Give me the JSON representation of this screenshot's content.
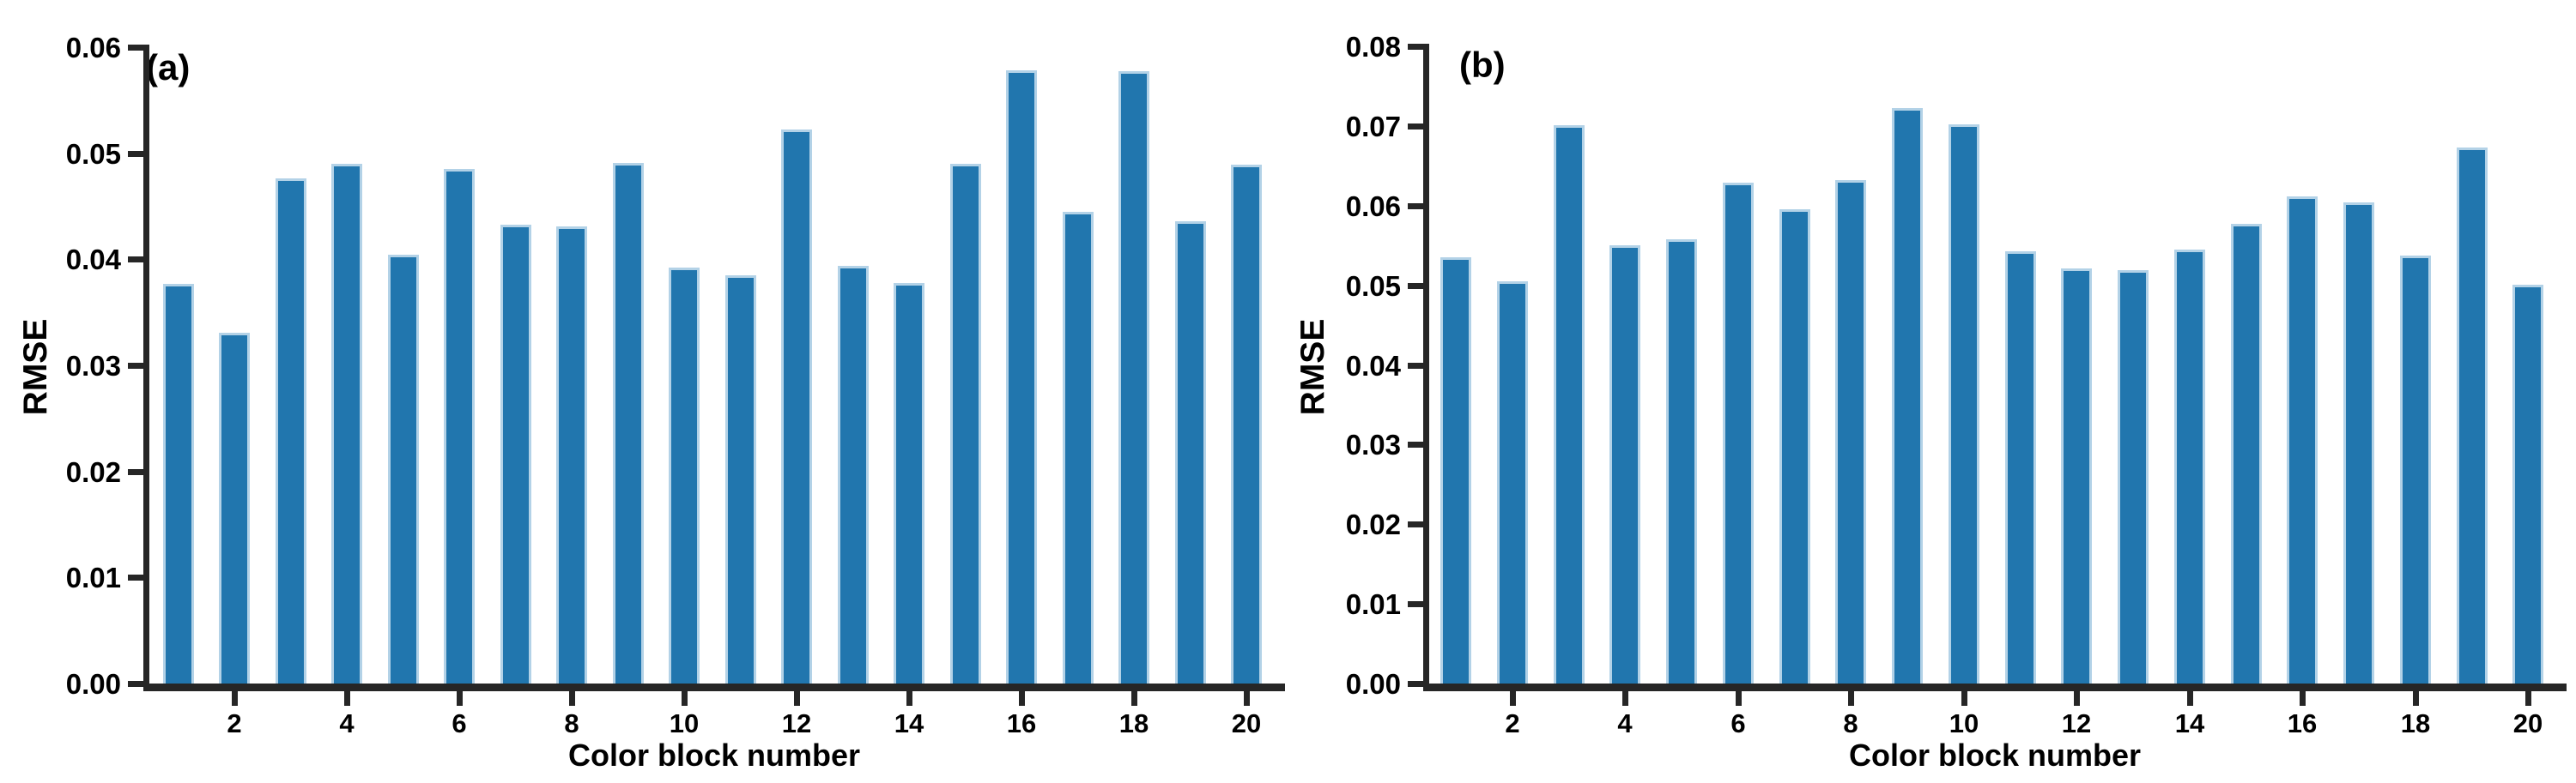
{
  "figure": {
    "background": "#ffffff",
    "bar_fill": "#2176ae",
    "bar_edge": "#b3d2e7",
    "axis_color": "#262626",
    "text_color": "#000000"
  },
  "chart_data": [
    {
      "type": "bar",
      "panel_label": "(a)",
      "xlabel": "Color block number",
      "ylabel": "RMSE",
      "ylim": [
        0,
        0.06
      ],
      "ytick_values": [
        0,
        0.01,
        0.02,
        0.03,
        0.04,
        0.05,
        0.06
      ],
      "ytick_labels": [
        "0.00",
        "0.01",
        "0.02",
        "0.03",
        "0.04",
        "0.05",
        "0.06"
      ],
      "xtick_values": [
        2,
        4,
        6,
        8,
        10,
        12,
        14,
        16,
        18,
        20
      ],
      "xtick_labels": [
        "2",
        "4",
        "6",
        "8",
        "10",
        "12",
        "14",
        "16",
        "18",
        "20"
      ],
      "categories": [
        1,
        2,
        3,
        4,
        5,
        6,
        7,
        8,
        9,
        10,
        11,
        12,
        13,
        14,
        15,
        16,
        17,
        18,
        19,
        20
      ],
      "values": [
        0.0377,
        0.0331,
        0.0476,
        0.049,
        0.0404,
        0.0485,
        0.0433,
        0.0431,
        0.0491,
        0.0392,
        0.0385,
        0.0522,
        0.0394,
        0.0378,
        0.049,
        0.0578,
        0.0445,
        0.0577,
        0.0436,
        0.0489
      ],
      "grid": "off",
      "legend": "none"
    },
    {
      "type": "bar",
      "panel_label": "(b)",
      "xlabel": "Color block number",
      "ylabel": "RMSE",
      "ylim": [
        0,
        0.08
      ],
      "ytick_values": [
        0,
        0.01,
        0.02,
        0.03,
        0.04,
        0.05,
        0.06,
        0.07,
        0.08
      ],
      "ytick_labels": [
        "0.00",
        "0.01",
        "0.02",
        "0.03",
        "0.04",
        "0.05",
        "0.06",
        "0.07",
        "0.08"
      ],
      "xtick_values": [
        2,
        4,
        6,
        8,
        10,
        12,
        14,
        16,
        18,
        20
      ],
      "xtick_labels": [
        "2",
        "4",
        "6",
        "8",
        "10",
        "12",
        "14",
        "16",
        "18",
        "20"
      ],
      "categories": [
        1,
        2,
        3,
        4,
        5,
        6,
        7,
        8,
        9,
        10,
        11,
        12,
        13,
        14,
        15,
        16,
        17,
        18,
        19,
        20
      ],
      "values": [
        0.0535,
        0.0505,
        0.0701,
        0.055,
        0.0558,
        0.0629,
        0.0595,
        0.0632,
        0.0723,
        0.0702,
        0.0543,
        0.0521,
        0.0519,
        0.0545,
        0.0577,
        0.0612,
        0.0604,
        0.0537,
        0.0673,
        0.0501
      ],
      "grid": "off",
      "legend": "none"
    }
  ]
}
